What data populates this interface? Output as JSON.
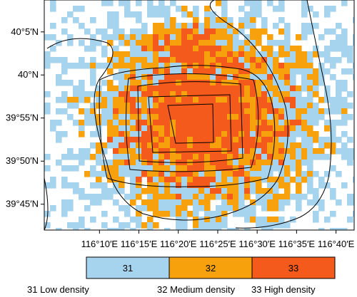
{
  "map": {
    "categories": [
      {
        "code": "31",
        "color": "#a6d4ee"
      },
      {
        "code": "32",
        "color": "#f7a10d"
      },
      {
        "code": "33",
        "color": "#f45a1b"
      }
    ],
    "x_axis": {
      "range": [
        116.05,
        116.705
      ],
      "ticks": [
        {
          "value": 116.1667,
          "label": "116°10′E"
        },
        {
          "value": 116.25,
          "label": "116°15′E"
        },
        {
          "value": 116.3333,
          "label": "116°20′E"
        },
        {
          "value": 116.4167,
          "label": "116°25′E"
        },
        {
          "value": 116.5,
          "label": "116°30′E"
        },
        {
          "value": 116.5833,
          "label": "116°35′E"
        },
        {
          "value": 116.6667,
          "label": "116°40′E"
        }
      ]
    },
    "y_axis": {
      "range": [
        39.7,
        40.145
      ],
      "ticks": [
        {
          "value": 40.0833,
          "label": "40°5′N"
        },
        {
          "value": 40.0,
          "label": "40°N"
        },
        {
          "value": 39.9167,
          "label": "39°55′N"
        },
        {
          "value": 39.8333,
          "label": "39°50′N"
        },
        {
          "value": 39.75,
          "label": "39°45′N"
        }
      ]
    },
    "colorbar": {
      "labels": [
        "31",
        "32",
        "33"
      ]
    },
    "legend": {
      "items": [
        "31 Low density",
        "32 Medium density",
        "33 High density"
      ]
    }
  }
}
